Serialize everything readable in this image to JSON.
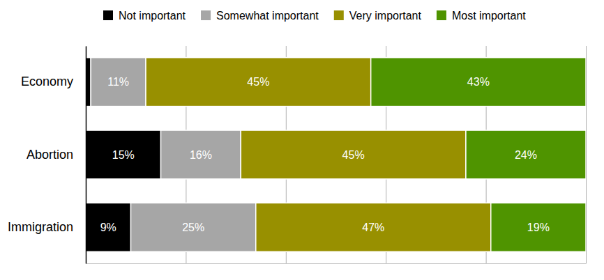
{
  "chart_data": {
    "type": "bar",
    "orientation": "horizontal",
    "stacked": true,
    "data_labels": true,
    "tick_labels": "y",
    "grid": true,
    "legend": "top",
    "categories": [
      "Economy",
      "Abortion",
      "Immigration"
    ],
    "xlim": [
      0,
      100
    ],
    "xticks": [
      0,
      20,
      40,
      60,
      80,
      100
    ],
    "series": [
      {
        "name": "Not important",
        "color": "#000000",
        "values": [
          1,
          15,
          9
        ],
        "value_labels": [
          null,
          "15%",
          "9%"
        ]
      },
      {
        "name": "Somewhat important",
        "color": "#a6a6a6",
        "values": [
          11,
          16,
          25
        ],
        "value_labels": [
          "11%",
          "16%",
          "25%"
        ]
      },
      {
        "name": "Very important",
        "color": "#989000",
        "values": [
          45,
          45,
          47
        ],
        "value_labels": [
          "45%",
          "45%",
          "47%"
        ]
      },
      {
        "name": "Most important",
        "color": "#4f9400",
        "values": [
          43,
          24,
          19
        ],
        "value_labels": [
          "43%",
          "24%",
          "19%"
        ]
      }
    ]
  }
}
